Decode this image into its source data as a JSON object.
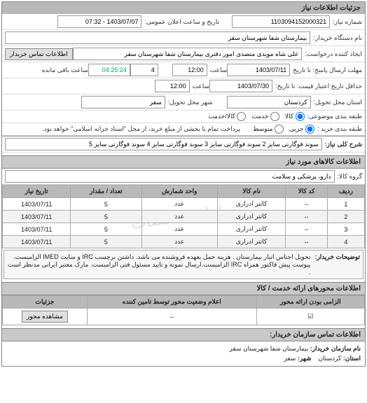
{
  "panel": {
    "title": "جزئیات اطلاعات نیاز"
  },
  "fields": {
    "need_number_label": "شماره نیاز:",
    "need_number": "1103094152000321",
    "announce_label": "تاریخ و ساعت اعلان عمومی:",
    "announce_value": "1403/07/07 - 07:32",
    "buyer_label": "نام دستگاه خریدار:",
    "buyer_value": "بیمارستان شفا شهرستان سقز",
    "requester_label": "ایجاد کننده درخواست:",
    "requester_value": "علی شاه مویدی متصدی امور دفتری بیمارستان شفا شهرستان سقز",
    "contact_btn": "اطلاعات تماس خریدار",
    "deadline_label": "مهلت ارسال پاسخ: تا تاریخ",
    "deadline_date": "1403/07/11",
    "deadline_hour_label": "ساعت",
    "deadline_hour": "12:00",
    "remaining_label": "ساعت باقی مانده",
    "days_value": "4",
    "time_value": "04:25:24",
    "validity_label": "حداقل تاریخ اعتبار قیمت: تا تاریخ:",
    "validity_date": "1403/07/30",
    "validity_hour_label": "ساعت",
    "validity_hour": "12:00",
    "province_label": "استان محل تحویل:",
    "province_value": "کردستان",
    "city_label": "شهر محل تحویل:",
    "city_value": "سقز",
    "package_label": "طبقه بندی موضوعی:",
    "package_opts": {
      "goods": "کالا",
      "service": "خدمت",
      "both": "کالا/خدمت"
    },
    "priority_label": "طبقه بندی خرید :",
    "priority_opts": {
      "small": "جزیی",
      "medium": "متوسط",
      "note": "پرداخت تمام یا بخشی از مبلغ خرید، از محل \"اسناد خزانه اسلامی\" خواهد بود."
    }
  },
  "main_desc": {
    "label": "شرح کلی نیاز:",
    "value": "سوند فوگارتی سایز 2 سوند فوگارتی سایز 3 سوند فوگارتی سایز 4 سوند فوگارتی سایز 5"
  },
  "goods": {
    "header": "اطلاعات کالاهای مورد نیاز",
    "group_label": "گروه کالا:",
    "group_value": "دارو، پزشکی و سلامت",
    "columns": [
      "ردیف",
      "کد کالا",
      "نام کالا",
      "واحد شمارش",
      "تعداد / مقدار",
      "تاریخ نیاز"
    ],
    "rows": [
      [
        "1",
        "--",
        "کاتتر ادراری",
        "عدد",
        "5",
        "1403/07/11"
      ],
      [
        "2",
        "--",
        "کاتتر ادراری",
        "عدد",
        "5",
        "1403/07/11"
      ],
      [
        "3",
        "--",
        "کاتتر ادراری",
        "عدد",
        "5",
        "1403/07/11"
      ],
      [
        "4",
        "--",
        "کاتتر ادراری",
        "عدد",
        "5",
        "1403/07/11"
      ]
    ],
    "watermark": "سامانه مناقصات"
  },
  "buyer_notes": {
    "label": "توضیحات خریدار:",
    "text": "تحویل اجناس انبار بیمارستان . هزینه حمل بعهده فروشنده می باشد. داشتن برچسب IRC و سایت IMED الزامیست. پیوست پیش فاکتور همراه IRC الزامیست.ارسال نمونه و تایید مسئول فنی الزامیست. مارک معتبر ایرانی مدنظر است ."
  },
  "axes": {
    "header": "اطلاعات محورهای ارائه خدمت / کالا",
    "columns": [
      "الزامی بودن ارائه محور",
      "اعلام وضعیت محور توسط تامین کننده",
      "جزئیات"
    ],
    "row": {
      "mandatory_icon": "☑",
      "status": "--",
      "details_btn": "مشاهده مجوز"
    }
  },
  "footer": {
    "header": "اطلاعات تماس سازمان خریدار:",
    "org_label": "نام سازمان خریدار:",
    "org_value": "بیمارستان شفا شهرستان سقز",
    "prov_label": "استان:",
    "prov_value": "کردستان",
    "city_label": "شهر:",
    "city_value": "سقز"
  }
}
